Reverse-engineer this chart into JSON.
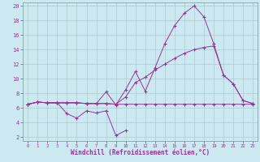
{
  "xlabel": "Windchill (Refroidissement éolien,°C)",
  "background_color": "#cce8f0",
  "grid_color": "#aacccc",
  "line_color": "#993399",
  "x": [
    0,
    1,
    2,
    3,
    4,
    5,
    6,
    7,
    8,
    9,
    10,
    11,
    12,
    13,
    14,
    15,
    16,
    17,
    18,
    19,
    20,
    21,
    22,
    23
  ],
  "line1": [
    6.5,
    6.8,
    6.7,
    6.7,
    5.2,
    4.6,
    5.6,
    5.3,
    5.6,
    2.2,
    2.9,
    null,
    null,
    null,
    null,
    null,
    null,
    null,
    null,
    null,
    null,
    null,
    null,
    null
  ],
  "line2": [
    6.5,
    6.8,
    6.7,
    6.7,
    6.7,
    6.7,
    6.6,
    6.6,
    6.6,
    6.5,
    6.5,
    6.5,
    6.5,
    6.5,
    6.5,
    6.5,
    6.5,
    6.5,
    6.5,
    6.5,
    6.5,
    6.5,
    6.5,
    6.5
  ],
  "line3": [
    6.5,
    6.8,
    6.7,
    6.7,
    6.7,
    6.7,
    6.6,
    6.6,
    8.2,
    6.4,
    8.5,
    11.0,
    8.3,
    11.5,
    14.8,
    17.3,
    19.0,
    20.0,
    18.5,
    14.8,
    10.5,
    9.3,
    7.0,
    6.6
  ],
  "line4": [
    6.5,
    6.8,
    6.7,
    6.7,
    6.7,
    6.7,
    6.6,
    6.6,
    6.6,
    6.5,
    7.5,
    9.5,
    10.2,
    11.2,
    12.0,
    12.8,
    13.5,
    14.0,
    14.3,
    14.5,
    10.5,
    9.3,
    7.0,
    6.6
  ],
  "xlim": [
    -0.5,
    23.5
  ],
  "ylim": [
    1.5,
    20.5
  ],
  "ytick_major": [
    2,
    4,
    6,
    8,
    10,
    12,
    14,
    16,
    18,
    20
  ]
}
